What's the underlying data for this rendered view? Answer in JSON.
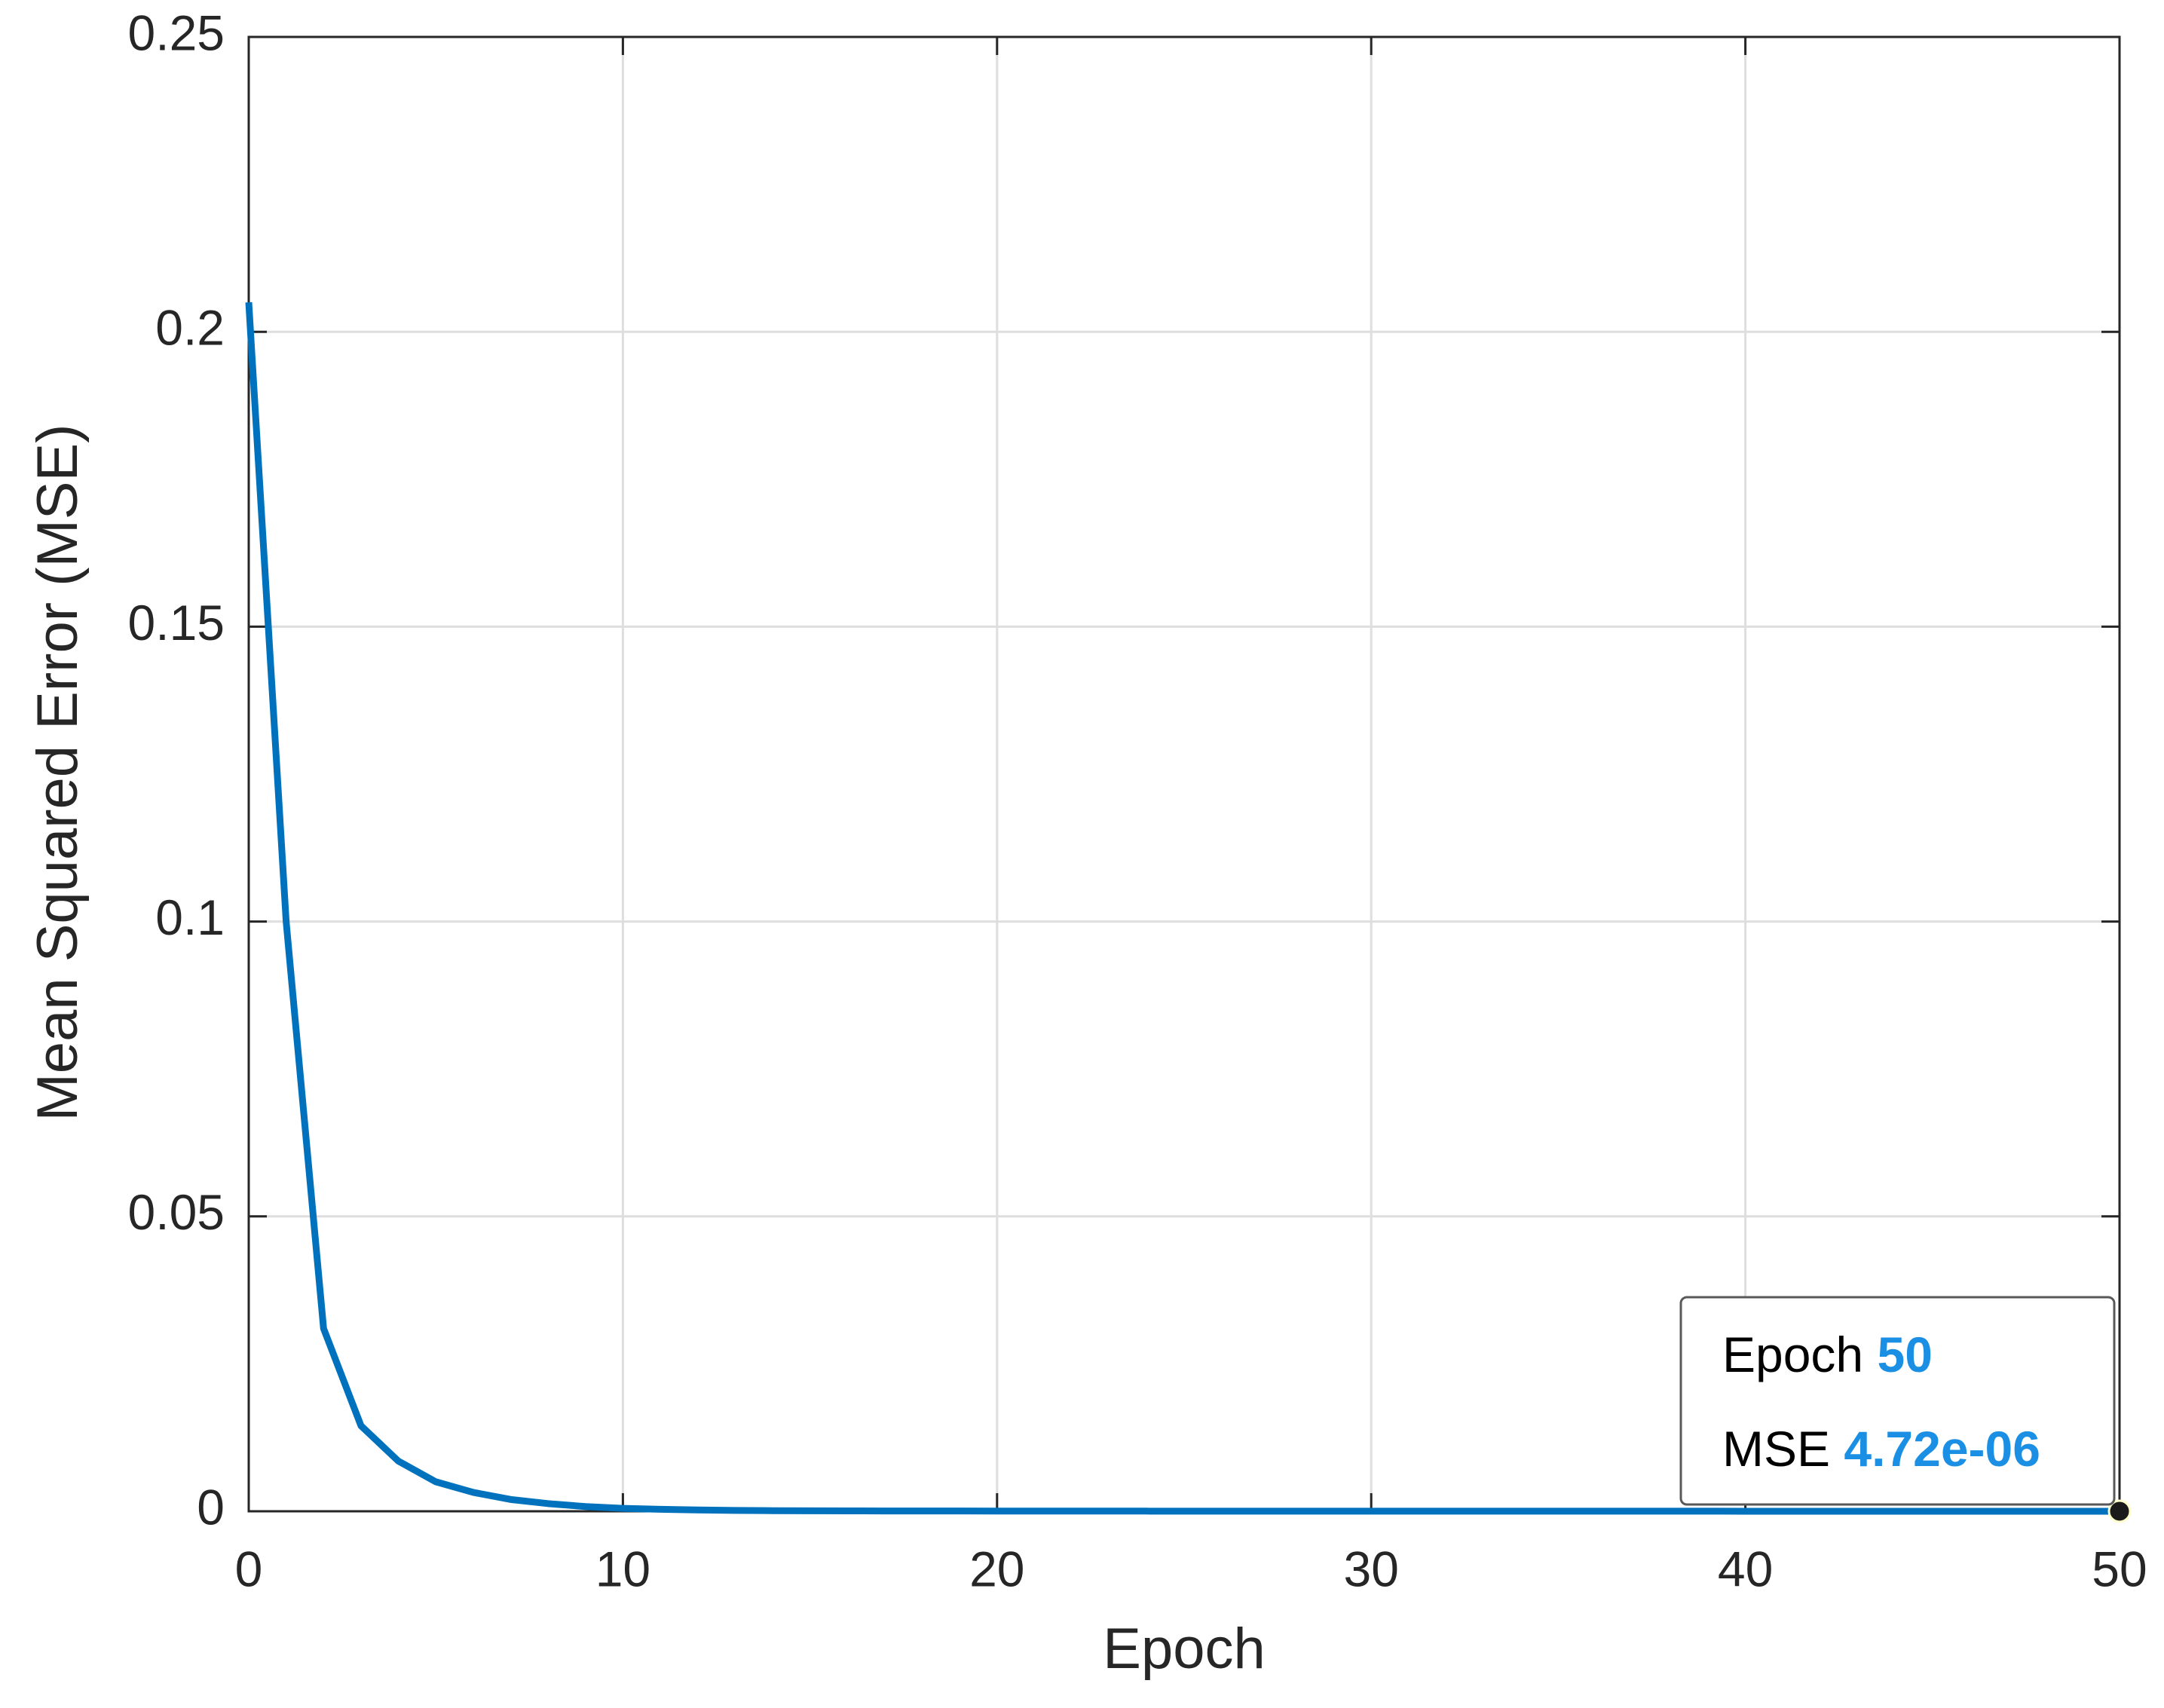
{
  "chart_data": {
    "type": "line",
    "xlabel": "Epoch",
    "ylabel": "Mean Squared Error (MSE)",
    "series": [
      {
        "color": "#0072bd",
        "x": [
          0,
          1,
          2,
          3,
          4,
          5,
          6,
          7,
          8,
          9,
          10,
          11,
          12,
          13,
          14,
          15,
          16,
          17,
          18,
          19,
          20,
          21,
          22,
          23,
          24,
          25,
          26,
          27,
          28,
          29,
          30,
          31,
          32,
          33,
          34,
          35,
          36,
          37,
          38,
          39,
          40,
          41,
          42,
          43,
          44,
          45,
          46,
          47,
          48,
          49,
          50
        ],
        "values": [
          0.205,
          0.1,
          0.031,
          0.0145,
          0.0085,
          0.005,
          0.0032,
          0.002,
          0.0013,
          0.0008,
          0.0005,
          0.00033,
          0.00022,
          0.00015,
          0.0001,
          8e-05,
          6.5e-05,
          5.5e-05,
          4.7e-05,
          4.1e-05,
          3.6e-05,
          3.2e-05,
          2.9e-05,
          2.6e-05,
          2.4e-05,
          2.2e-05,
          2e-05,
          1.85e-05,
          1.7e-05,
          1.58e-05,
          1.47e-05,
          1.37e-05,
          1.28e-05,
          1.2e-05,
          1.12e-05,
          1.05e-05,
          9.9e-06,
          9.3e-06,
          8.8e-06,
          8.3e-06,
          7.9e-06,
          7.5e-06,
          7.1e-06,
          6.7e-06,
          6.4e-06,
          6.1e-06,
          5.8e-06,
          5.5e-06,
          5.2e-06,
          4.95e-06,
          4.72e-06
        ]
      }
    ],
    "xlim": [
      0,
      50
    ],
    "xticks": [
      0,
      10,
      20,
      30,
      40,
      50
    ],
    "ylim": [
      0,
      0.25
    ],
    "yticks": [
      0,
      0.05,
      0.1,
      0.15,
      0.2,
      0.25
    ],
    "grid": true,
    "datatip": {
      "x_label": "Epoch",
      "x": 50,
      "y_label": "MSE",
      "y": 4.72e-06,
      "y_value_label": "4.72e-06"
    }
  }
}
